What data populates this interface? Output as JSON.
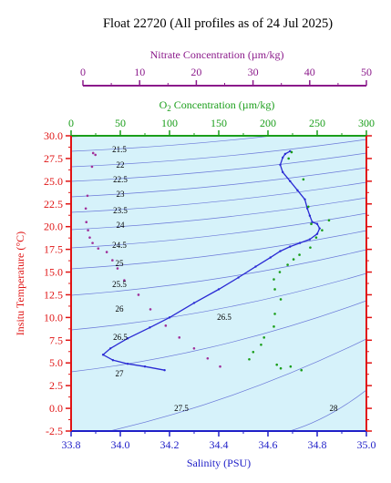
{
  "chart_data": {
    "type": "scatter",
    "title": "Float 22720  (All profiles as of 24 Jul 2025)",
    "xlabel": "Salinity (PSU)",
    "ylabel": "Insitu Temperature (°C)",
    "xlim": [
      33.8,
      35.0
    ],
    "ylim": [
      -2.5,
      30.0
    ],
    "x_ticks": [
      "33.8",
      "34.0",
      "34.2",
      "34.4",
      "34.6",
      "34.8",
      "35.0"
    ],
    "y_ticks": [
      "-2.5",
      "0.0",
      "2.5",
      "5.0",
      "7.5",
      "10.0",
      "12.5",
      "15.0",
      "17.5",
      "20.0",
      "22.5",
      "25.0",
      "27.5",
      "30.0"
    ],
    "top_axes": [
      {
        "label": "O",
        "label_sub": "2",
        "label_rest": " Concentration (µm/kg)",
        "range": [
          0,
          300
        ],
        "ticks": [
          "0",
          "50",
          "100",
          "150",
          "200",
          "250",
          "300"
        ],
        "color": "#1a9e1a"
      },
      {
        "label": "Nitrate Concentration (µm/kg)",
        "range": [
          0,
          50
        ],
        "ticks": [
          "0",
          "10",
          "20",
          "30",
          "40",
          "50"
        ],
        "color": "#8b1a8b"
      }
    ],
    "colors": {
      "salinity": "#2a2ad4",
      "oxygen": "#1a9e1a",
      "nitrate": "#a0309a",
      "density": "#6a78d8",
      "plot_bg": "#d6f2fa",
      "temp_axis": "#e01414",
      "frame": "#2020c8"
    },
    "grid": false,
    "density_contours": [
      "21.5",
      "22",
      "22.5",
      "23",
      "23.5",
      "24",
      "24.5",
      "25",
      "25.5",
      "26",
      "26.5",
      "26.5",
      "27",
      "27.5",
      "28"
    ],
    "series": [
      {
        "kind": "salinity_profile",
        "points": [
          [
            34.69,
            28.3
          ],
          [
            34.67,
            28.0
          ],
          [
            34.66,
            27.6
          ],
          [
            34.65,
            26.8
          ],
          [
            34.66,
            26.0
          ],
          [
            34.69,
            25.0
          ],
          [
            34.72,
            24.0
          ],
          [
            34.75,
            23.0
          ],
          [
            34.76,
            22.0
          ],
          [
            34.77,
            21.2
          ],
          [
            34.78,
            20.5
          ],
          [
            34.8,
            20.3
          ],
          [
            34.81,
            19.8
          ],
          [
            34.8,
            19.2
          ],
          [
            34.77,
            18.6
          ],
          [
            34.73,
            18.2
          ],
          [
            34.69,
            17.8
          ],
          [
            34.65,
            17.3
          ],
          [
            34.61,
            16.6
          ],
          [
            34.55,
            15.6
          ],
          [
            34.48,
            14.4
          ],
          [
            34.4,
            13.1
          ],
          [
            34.3,
            11.6
          ],
          [
            34.2,
            10.0
          ],
          [
            34.12,
            8.9
          ],
          [
            34.03,
            7.7
          ],
          [
            33.96,
            6.6
          ],
          [
            33.93,
            5.9
          ],
          [
            33.97,
            5.3
          ],
          [
            34.03,
            4.9
          ],
          [
            34.1,
            4.6
          ],
          [
            34.18,
            4.2
          ]
        ]
      },
      {
        "kind": "oxygen_profile",
        "points": [
          [
            224,
            28.2
          ],
          [
            221,
            27.5
          ],
          [
            236,
            25.2
          ],
          [
            241,
            22.2
          ],
          [
            262,
            20.7
          ],
          [
            244,
            20.3
          ],
          [
            255,
            19.6
          ],
          [
            249,
            18.8
          ],
          [
            243,
            17.7
          ],
          [
            232,
            16.9
          ],
          [
            226,
            16.4
          ],
          [
            220,
            15.8
          ],
          [
            212,
            15.0
          ],
          [
            206,
            14.2
          ],
          [
            207,
            13.1
          ],
          [
            213,
            12.0
          ],
          [
            207,
            10.4
          ],
          [
            206,
            9.0
          ],
          [
            196,
            7.8
          ],
          [
            193,
            7.0
          ],
          [
            185,
            6.2
          ],
          [
            181,
            5.4
          ],
          [
            209,
            4.8
          ],
          [
            213,
            4.4
          ],
          [
            223,
            4.6
          ],
          [
            234,
            4.2
          ]
        ]
      },
      {
        "kind": "nitrate_profile",
        "points": [
          [
            1.8,
            28.1
          ],
          [
            2.2,
            27.9
          ],
          [
            1.6,
            26.6
          ],
          [
            0.8,
            23.4
          ],
          [
            0.5,
            22.0
          ],
          [
            0.6,
            20.5
          ],
          [
            0.9,
            19.6
          ],
          [
            1.2,
            18.8
          ],
          [
            1.7,
            18.2
          ],
          [
            2.7,
            17.6
          ],
          [
            4.2,
            17.2
          ],
          [
            5.2,
            16.3
          ],
          [
            6.1,
            15.4
          ],
          [
            7.3,
            14.1
          ],
          [
            9.8,
            12.5
          ],
          [
            11.9,
            10.9
          ],
          [
            14.6,
            9.1
          ],
          [
            17.0,
            7.8
          ],
          [
            19.6,
            6.6
          ],
          [
            22.0,
            5.5
          ],
          [
            24.2,
            4.6
          ]
        ]
      }
    ]
  }
}
